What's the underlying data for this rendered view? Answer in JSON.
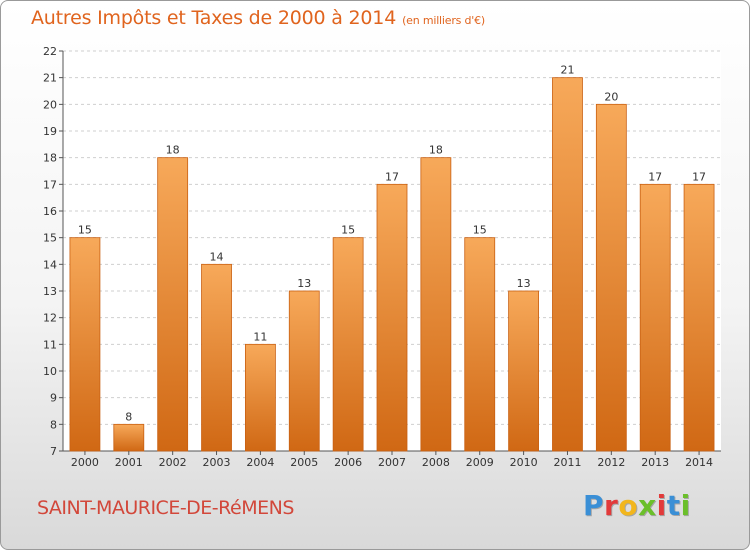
{
  "header": {
    "title": "Autres Impôts et Taxes de 2000 à 2014",
    "unit": "(en milliers d'€)"
  },
  "footer": {
    "commune": "SAINT-MAURICE-DE-RéMENS",
    "logo_letters": [
      "P",
      "r",
      "o",
      "x",
      "i",
      "t",
      "i"
    ],
    "logo_colors": [
      "#3a8fd6",
      "#e23a3a",
      "#f2b61c",
      "#6bbf2a",
      "#e23a3a",
      "#3a8fd6",
      "#6bbf2a"
    ]
  },
  "colors": {
    "bar": "#f08a2c",
    "bar_light": "#f7a95a",
    "bar_dark": "#d06814",
    "grid": "#cfcfcf",
    "axis": "#555555",
    "title": "#e0641e"
  },
  "chart_data": {
    "type": "bar",
    "title": "Autres Impôts et Taxes de 2000 à 2014",
    "unit": "(en milliers d'€)",
    "categories": [
      "2000",
      "2001",
      "2002",
      "2003",
      "2004",
      "2005",
      "2006",
      "2007",
      "2008",
      "2009",
      "2010",
      "2011",
      "2012",
      "2013",
      "2014"
    ],
    "values": [
      15,
      8,
      18,
      14,
      11,
      13,
      15,
      17,
      18,
      15,
      13,
      21,
      20,
      17,
      17
    ],
    "ylim": [
      7,
      22
    ],
    "yticks": [
      7,
      8,
      9,
      10,
      11,
      12,
      13,
      14,
      15,
      16,
      17,
      18,
      19,
      20,
      21,
      22
    ],
    "grid": true,
    "legend": "none"
  }
}
